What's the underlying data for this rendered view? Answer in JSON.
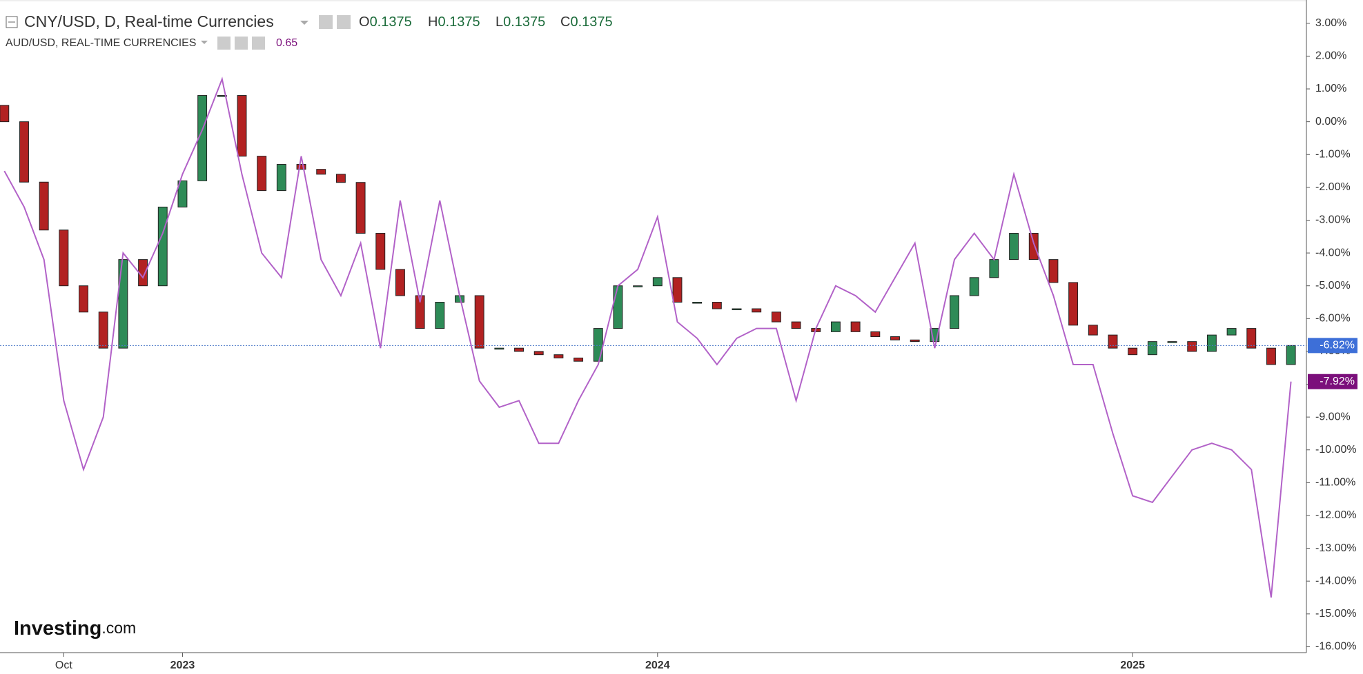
{
  "chart_data": {
    "type": "candlestick",
    "categories": [
      null,
      null,
      null,
      "Oct",
      null,
      null,
      null,
      null,
      null,
      "2023",
      null,
      null,
      null,
      null,
      null,
      null,
      null,
      null,
      null,
      null,
      null,
      null,
      null,
      null,
      null,
      null,
      null,
      null,
      null,
      null,
      null,
      null,
      null,
      "2024",
      null,
      null,
      null,
      null,
      null,
      null,
      null,
      null,
      null,
      null,
      null,
      null,
      null,
      null,
      null,
      null,
      null,
      null,
      null,
      null,
      null,
      null,
      null,
      "2025",
      null,
      null,
      null,
      null,
      null,
      null,
      null,
      null
    ],
    "series": [
      {
        "name": "CNY/USD, D, Real-time Currencies",
        "type": "candlestick",
        "up_color": "#2e8b57",
        "down_color": "#b22222",
        "readout": [
          {
            "label": "O",
            "value": 0.1375
          },
          {
            "label": "H",
            "value": 0.1375
          },
          {
            "label": "L",
            "value": 0.1375
          },
          {
            "label": "C",
            "value": 0.1375
          }
        ],
        "open": [
          0.5,
          0.0,
          -1.84,
          -3.3,
          -5.0,
          -5.8,
          -6.9,
          -4.2,
          -5.0,
          -2.6,
          -1.8,
          0.8,
          0.8,
          -1.05,
          -2.1,
          -1.3,
          -1.45,
          -1.6,
          -1.85,
          -3.4,
          -4.5,
          -5.3,
          -6.3,
          -5.5,
          -5.3,
          -6.9,
          -6.9,
          -7.0,
          -7.1,
          -7.2,
          -7.3,
          -6.3,
          -5.0,
          -5.0,
          -4.75,
          -5.5,
          -5.5,
          -5.7,
          -5.7,
          -5.8,
          -6.1,
          -6.3,
          -6.4,
          -6.1,
          -6.4,
          -6.55,
          -6.65,
          -6.7,
          -6.3,
          -5.3,
          -4.75,
          -4.2,
          -3.4,
          -4.2,
          -4.9,
          -6.2,
          -6.5,
          -6.9,
          -7.1,
          -6.7,
          -6.7,
          -7.0,
          -6.5,
          -6.3,
          -6.9,
          -7.4
        ],
        "close": [
          0.0,
          -1.84,
          -3.3,
          -5.0,
          -5.8,
          -6.9,
          -4.2,
          -5.0,
          -2.6,
          -1.8,
          0.8,
          0.8,
          -1.05,
          -2.1,
          -1.3,
          -1.45,
          -1.6,
          -1.85,
          -3.4,
          -4.5,
          -5.3,
          -6.3,
          -5.5,
          -5.3,
          -6.9,
          -6.9,
          -7.0,
          -7.1,
          -7.2,
          -7.3,
          -6.3,
          -5.0,
          -5.0,
          -4.75,
          -5.5,
          -5.5,
          -5.7,
          -5.7,
          -5.8,
          -6.1,
          -6.3,
          -6.4,
          -6.1,
          -6.4,
          -6.55,
          -6.65,
          -6.7,
          -6.3,
          -5.3,
          -4.75,
          -4.2,
          -3.4,
          -4.2,
          -4.9,
          -6.2,
          -6.5,
          -6.9,
          -7.1,
          -6.7,
          -6.7,
          -7.0,
          -6.5,
          -6.3,
          -6.9,
          -7.4,
          -6.82
        ],
        "value_labels": [
          null,
          null,
          null,
          null,
          null,
          null,
          null,
          null,
          null,
          null,
          null,
          null,
          null,
          null,
          null,
          null,
          null,
          null,
          null,
          null,
          null,
          null,
          null,
          null,
          null,
          null,
          null,
          null,
          null,
          null,
          null,
          null,
          null,
          null,
          null,
          null,
          null,
          null,
          null,
          null,
          null,
          null,
          null,
          null,
          null,
          null,
          null,
          null,
          null,
          null,
          null,
          null,
          null,
          null,
          null,
          null,
          null,
          null,
          null,
          null,
          null,
          null,
          null,
          null,
          null,
          "-6.82%"
        ],
        "label_color": "#3d6fd8"
      },
      {
        "name": "AUD/USD, REAL-TIME CURRENCIES",
        "type": "line",
        "color": "#b262c8",
        "readout": 0.65,
        "values": [
          -1.5,
          -2.6,
          -4.2,
          -8.5,
          -10.6,
          -9.0,
          -4.0,
          -4.75,
          -3.4,
          -1.6,
          -0.25,
          1.3,
          -1.6,
          -4.0,
          -4.75,
          -1.05,
          -4.2,
          -5.3,
          -3.7,
          -6.9,
          -2.4,
          -5.5,
          -2.4,
          -5.3,
          -7.9,
          -8.7,
          -8.5,
          -9.8,
          -9.8,
          -8.5,
          -7.4,
          -5.0,
          -4.5,
          -2.9,
          -6.1,
          -6.6,
          -7.4,
          -6.6,
          -6.3,
          -6.3,
          -8.5,
          -6.3,
          -5.0,
          -5.3,
          -5.8,
          -4.75,
          -3.7,
          -6.9,
          -4.2,
          -3.4,
          -4.2,
          -1.6,
          -3.7,
          -5.3,
          -7.4,
          -7.4,
          -9.5,
          -11.4,
          -11.6,
          -10.8,
          -10.0,
          -9.8,
          -10.0,
          -10.6,
          -14.5,
          -7.92
        ],
        "value_labels": [
          null,
          null,
          null,
          null,
          null,
          null,
          null,
          null,
          null,
          null,
          null,
          null,
          null,
          null,
          null,
          null,
          null,
          null,
          null,
          null,
          null,
          null,
          null,
          null,
          null,
          null,
          null,
          null,
          null,
          null,
          null,
          null,
          null,
          null,
          null,
          null,
          null,
          null,
          null,
          null,
          null,
          null,
          null,
          null,
          null,
          null,
          null,
          null,
          null,
          null,
          null,
          null,
          null,
          null,
          null,
          null,
          null,
          null,
          null,
          null,
          null,
          null,
          null,
          null,
          null,
          "-7.92%"
        ],
        "label_color": "#7b0f7b"
      }
    ],
    "ylim": [
      -16.18,
      3.71
    ],
    "yticks": [
      {
        "value": 3,
        "label": "3.00%"
      },
      {
        "value": 2,
        "label": "2.00%"
      },
      {
        "value": 1,
        "label": "1.00%"
      },
      {
        "value": 0,
        "label": "0.00%"
      },
      {
        "value": -1,
        "label": "-1.00%"
      },
      {
        "value": -2,
        "label": "-2.00%"
      },
      {
        "value": -3,
        "label": "-3.00%"
      },
      {
        "value": -4,
        "label": "-4.00%"
      },
      {
        "value": -5,
        "label": "-5.00%"
      },
      {
        "value": -6,
        "label": "-6.00%"
      },
      {
        "value": -7,
        "label": "-7.00%"
      },
      {
        "value": -8,
        "label": "-8.00%"
      },
      {
        "value": -9,
        "label": "-9.00%"
      },
      {
        "value": -10,
        "label": "-10.00%"
      },
      {
        "value": -11,
        "label": "-11.00%"
      },
      {
        "value": -12,
        "label": "-12.00%"
      },
      {
        "value": -13,
        "label": "-13.00%"
      },
      {
        "value": -14,
        "label": "-14.00%"
      },
      {
        "value": -15,
        "label": "-15.00%"
      },
      {
        "value": -16,
        "label": "-16.00%"
      }
    ],
    "watermark": [
      "Investing",
      ".com"
    ]
  }
}
